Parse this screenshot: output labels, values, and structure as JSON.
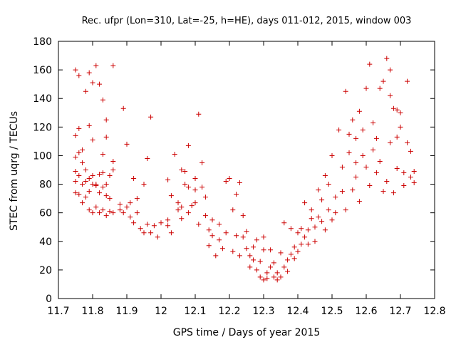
{
  "chart_data": {
    "type": "scatter",
    "title": "Rec. ufpr (Lon=310, Lat=-25, h=HE), days 011-012, 2015, window 003",
    "xlabel": "GPS time / Days of year 2015",
    "ylabel": "STEC from uqrg / TECUs",
    "xlim": [
      11.7,
      12.8
    ],
    "ylim": [
      0,
      180
    ],
    "xticks": [
      "11.7",
      "11.8",
      "11.9",
      "12",
      "12.1",
      "12.2",
      "12.3",
      "12.4",
      "12.5",
      "12.6",
      "12.7",
      "12.8"
    ],
    "yticks": [
      "0",
      "20",
      "40",
      "60",
      "80",
      "100",
      "120",
      "140",
      "160",
      "180"
    ],
    "marker": "+",
    "color": "#cc0000",
    "grid": false,
    "legend": "none",
    "series": [
      {
        "points": [
          [
            11.75,
            160
          ],
          [
            11.76,
            156
          ],
          [
            11.78,
            145
          ],
          [
            11.79,
            158
          ],
          [
            11.8,
            151
          ],
          [
            11.81,
            163
          ],
          [
            11.82,
            150
          ],
          [
            11.83,
            139
          ],
          [
            11.84,
            125
          ],
          [
            11.86,
            163
          ],
          [
            11.75,
            114
          ],
          [
            11.76,
            119
          ],
          [
            11.77,
            104
          ],
          [
            11.79,
            121
          ],
          [
            11.8,
            111
          ],
          [
            11.83,
            101
          ],
          [
            11.84,
            113
          ],
          [
            11.86,
            96
          ],
          [
            11.89,
            133
          ],
          [
            11.9,
            108
          ],
          [
            11.75,
            99
          ],
          [
            11.76,
            102
          ],
          [
            11.77,
            95
          ],
          [
            11.78,
            90
          ],
          [
            11.79,
            84
          ],
          [
            11.8,
            86
          ],
          [
            11.81,
            80
          ],
          [
            11.82,
            87
          ],
          [
            11.83,
            88
          ],
          [
            11.84,
            80
          ],
          [
            11.85,
            86
          ],
          [
            11.86,
            90
          ],
          [
            11.75,
            89
          ],
          [
            11.75,
            82
          ],
          [
            11.76,
            86
          ],
          [
            11.77,
            80
          ],
          [
            11.78,
            82
          ],
          [
            11.79,
            75
          ],
          [
            11.8,
            80
          ],
          [
            11.81,
            79
          ],
          [
            11.82,
            74
          ],
          [
            11.83,
            78
          ],
          [
            11.84,
            72
          ],
          [
            11.85,
            70
          ],
          [
            11.75,
            74
          ],
          [
            11.76,
            73
          ],
          [
            11.77,
            67
          ],
          [
            11.78,
            71
          ],
          [
            11.79,
            62
          ],
          [
            11.8,
            60
          ],
          [
            11.81,
            64
          ],
          [
            11.82,
            60
          ],
          [
            11.83,
            62
          ],
          [
            11.84,
            58
          ],
          [
            11.85,
            61
          ],
          [
            11.86,
            60
          ],
          [
            11.88,
            62
          ],
          [
            11.88,
            66
          ],
          [
            11.89,
            60
          ],
          [
            11.9,
            64
          ],
          [
            11.91,
            67
          ],
          [
            11.91,
            57
          ],
          [
            11.92,
            53
          ],
          [
            11.93,
            60
          ],
          [
            11.93,
            70
          ],
          [
            11.94,
            49
          ],
          [
            11.95,
            46
          ],
          [
            11.96,
            52
          ],
          [
            11.92,
            84
          ],
          [
            11.95,
            80
          ],
          [
            11.96,
            98
          ],
          [
            11.97,
            127
          ],
          [
            11.97,
            46
          ],
          [
            11.98,
            51
          ],
          [
            11.99,
            43
          ],
          [
            12.0,
            53
          ],
          [
            12.02,
            55
          ],
          [
            12.02,
            51
          ],
          [
            12.03,
            46
          ],
          [
            12.03,
            72
          ],
          [
            12.02,
            83
          ],
          [
            12.04,
            101
          ],
          [
            12.05,
            67
          ],
          [
            12.05,
            62
          ],
          [
            12.06,
            90
          ],
          [
            12.06,
            64
          ],
          [
            12.06,
            56
          ],
          [
            12.07,
            80
          ],
          [
            12.07,
            89
          ],
          [
            12.08,
            107
          ],
          [
            12.08,
            78
          ],
          [
            12.08,
            60
          ],
          [
            12.09,
            65
          ],
          [
            12.1,
            84
          ],
          [
            12.1,
            76
          ],
          [
            12.1,
            67
          ],
          [
            12.11,
            129
          ],
          [
            12.11,
            52
          ],
          [
            12.12,
            95
          ],
          [
            12.12,
            78
          ],
          [
            12.13,
            58
          ],
          [
            12.13,
            71
          ],
          [
            12.14,
            48
          ],
          [
            12.15,
            55
          ],
          [
            12.14,
            37
          ],
          [
            12.15,
            44
          ],
          [
            12.16,
            30
          ],
          [
            12.17,
            41
          ],
          [
            12.17,
            52
          ],
          [
            12.18,
            35
          ],
          [
            12.19,
            46
          ],
          [
            12.19,
            82
          ],
          [
            12.2,
            84
          ],
          [
            12.21,
            62
          ],
          [
            12.21,
            33
          ],
          [
            12.22,
            44
          ],
          [
            12.22,
            73
          ],
          [
            12.23,
            81
          ],
          [
            12.23,
            30
          ],
          [
            12.24,
            43
          ],
          [
            12.24,
            58
          ],
          [
            12.25,
            35
          ],
          [
            12.25,
            47
          ],
          [
            12.26,
            30
          ],
          [
            12.26,
            22
          ],
          [
            12.27,
            36
          ],
          [
            12.27,
            27
          ],
          [
            12.28,
            41
          ],
          [
            12.28,
            20
          ],
          [
            12.29,
            15
          ],
          [
            12.29,
            26
          ],
          [
            12.3,
            13
          ],
          [
            12.3,
            34
          ],
          [
            12.3,
            43
          ],
          [
            12.31,
            18
          ],
          [
            12.31,
            14
          ],
          [
            12.32,
            22
          ],
          [
            12.32,
            34
          ],
          [
            12.33,
            15
          ],
          [
            12.33,
            25
          ],
          [
            12.34,
            13
          ],
          [
            12.34,
            18
          ],
          [
            12.35,
            15
          ],
          [
            12.35,
            32
          ],
          [
            12.36,
            22
          ],
          [
            12.36,
            53
          ],
          [
            12.37,
            27
          ],
          [
            12.37,
            19
          ],
          [
            12.38,
            31
          ],
          [
            12.38,
            49
          ],
          [
            12.39,
            28
          ],
          [
            12.39,
            36
          ],
          [
            12.4,
            33
          ],
          [
            12.4,
            46
          ],
          [
            12.41,
            38
          ],
          [
            12.41,
            49
          ],
          [
            12.42,
            43
          ],
          [
            12.42,
            67
          ],
          [
            12.43,
            48
          ],
          [
            12.43,
            38
          ],
          [
            12.44,
            56
          ],
          [
            12.44,
            62
          ],
          [
            12.45,
            50
          ],
          [
            12.45,
            40
          ],
          [
            12.46,
            57
          ],
          [
            12.46,
            76
          ],
          [
            12.47,
            54
          ],
          [
            12.47,
            69
          ],
          [
            12.48,
            48
          ],
          [
            12.48,
            86
          ],
          [
            12.49,
            62
          ],
          [
            12.49,
            80
          ],
          [
            12.5,
            100
          ],
          [
            12.5,
            55
          ],
          [
            12.51,
            71
          ],
          [
            12.51,
            60
          ],
          [
            12.52,
            118
          ],
          [
            12.53,
            92
          ],
          [
            12.53,
            75
          ],
          [
            12.54,
            145
          ],
          [
            12.54,
            62
          ],
          [
            12.55,
            102
          ],
          [
            12.55,
            115
          ],
          [
            12.56,
            76
          ],
          [
            12.56,
            125
          ],
          [
            12.57,
            85
          ],
          [
            12.57,
            112
          ],
          [
            12.58,
            131
          ],
          [
            12.58,
            68
          ],
          [
            12.59,
            100
          ],
          [
            12.59,
            118
          ],
          [
            12.6,
            147
          ],
          [
            12.6,
            92
          ],
          [
            12.61,
            164
          ],
          [
            12.61,
            79
          ],
          [
            12.62,
            104
          ],
          [
            12.62,
            123
          ],
          [
            12.63,
            88
          ],
          [
            12.63,
            112
          ],
          [
            12.64,
            147
          ],
          [
            12.64,
            96
          ],
          [
            12.65,
            75
          ],
          [
            12.65,
            152
          ],
          [
            12.66,
            168
          ],
          [
            12.66,
            82
          ],
          [
            12.67,
            109
          ],
          [
            12.67,
            142
          ],
          [
            12.68,
            74
          ],
          [
            12.68,
            133
          ],
          [
            12.69,
            91
          ],
          [
            12.69,
            113
          ],
          [
            12.7,
            120
          ],
          [
            12.7,
            130
          ],
          [
            12.71,
            79
          ],
          [
            12.71,
            88
          ],
          [
            12.72,
            152
          ],
          [
            12.72,
            109
          ],
          [
            12.73,
            85
          ],
          [
            12.73,
            103
          ],
          [
            12.74,
            81
          ],
          [
            12.74,
            89
          ],
          [
            12.67,
            160
          ],
          [
            12.69,
            132
          ],
          [
            12.57,
            95
          ]
        ]
      }
    ]
  }
}
